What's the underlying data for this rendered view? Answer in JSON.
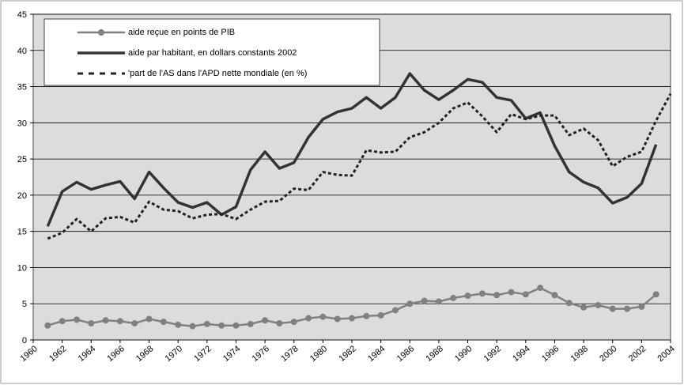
{
  "chart_data": {
    "type": "line",
    "x": [
      1961,
      1962,
      1963,
      1964,
      1965,
      1966,
      1967,
      1968,
      1969,
      1970,
      1971,
      1972,
      1973,
      1974,
      1975,
      1976,
      1977,
      1978,
      1979,
      1980,
      1981,
      1982,
      1983,
      1984,
      1985,
      1986,
      1987,
      1988,
      1989,
      1990,
      1991,
      1992,
      1993,
      1994,
      1995,
      1996,
      1997,
      1998,
      1999,
      2000,
      2001,
      2002,
      2003,
      2004
    ],
    "series": [
      {
        "name": "aide reçue en points de PIB",
        "color": "#808080",
        "style": "marker",
        "values": [
          2.0,
          2.6,
          2.8,
          2.3,
          2.7,
          2.6,
          2.3,
          2.9,
          2.5,
          2.1,
          1.9,
          2.2,
          2.0,
          2.0,
          2.2,
          2.7,
          2.3,
          2.5,
          3.0,
          3.2,
          2.9,
          3.0,
          3.3,
          3.4,
          4.1,
          5.0,
          5.4,
          5.3,
          5.8,
          6.1,
          6.4,
          6.2,
          6.6,
          6.3,
          7.2,
          6.2,
          5.1,
          4.5,
          4.8,
          4.3,
          4.3,
          4.6,
          6.3,
          null
        ]
      },
      {
        "name": "aide par habitant, en dollars constants 2002",
        "color": "#333333",
        "style": "solid",
        "values": [
          15.7,
          20.5,
          21.8,
          20.8,
          21.4,
          21.9,
          19.5,
          23.2,
          21.0,
          19.0,
          18.3,
          19.0,
          17.3,
          18.4,
          23.5,
          26.0,
          23.7,
          24.5,
          28.0,
          30.5,
          31.5,
          32.0,
          33.5,
          32.0,
          33.5,
          36.8,
          34.5,
          33.2,
          34.5,
          36.0,
          35.6,
          33.5,
          33.1,
          30.6,
          31.4,
          26.8,
          23.2,
          21.8,
          21.0,
          18.9,
          19.7,
          21.6,
          27.0,
          null
        ]
      },
      {
        "name": "'part de l'AS dans l'APD nette mondiale (en %)",
        "color": "#222222",
        "style": "dashed",
        "values": [
          14.0,
          14.8,
          16.7,
          15.0,
          16.8,
          17.0,
          16.2,
          19.1,
          18.0,
          17.8,
          16.8,
          17.3,
          17.4,
          16.7,
          18.0,
          19.1,
          19.2,
          20.9,
          20.7,
          23.2,
          22.8,
          22.7,
          26.2,
          25.9,
          26.0,
          28.0,
          28.7,
          30.0,
          32.0,
          32.8,
          30.9,
          28.7,
          31.2,
          30.5,
          31.0,
          31.0,
          28.3,
          29.2,
          27.6,
          24.0,
          25.3,
          26.0,
          30.3,
          34.0
        ]
      }
    ],
    "xlim": [
      1960,
      2004
    ],
    "ylim": [
      0,
      45
    ],
    "xticks": [
      1960,
      1962,
      1964,
      1966,
      1968,
      1970,
      1972,
      1974,
      1976,
      1978,
      1980,
      1982,
      1984,
      1986,
      1988,
      1990,
      1992,
      1994,
      1996,
      1998,
      2000,
      2002,
      2004
    ],
    "yticks": [
      0,
      5,
      10,
      15,
      20,
      25,
      30,
      35,
      40,
      45
    ],
    "grid": true
  }
}
